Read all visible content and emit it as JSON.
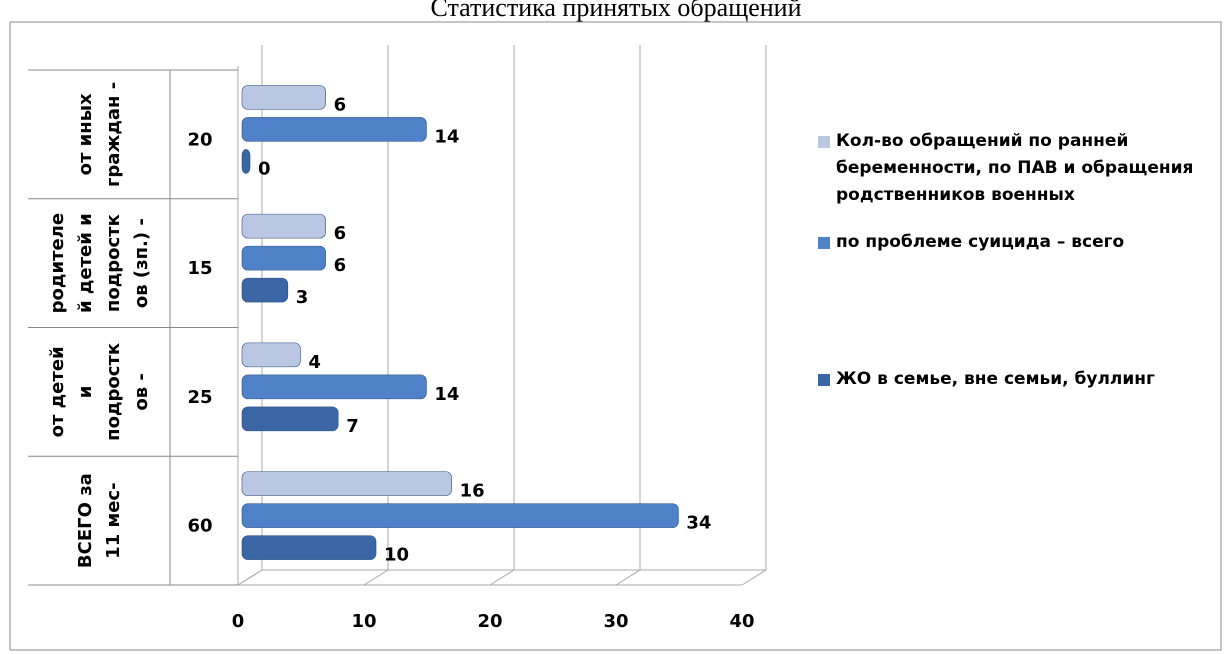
{
  "chart_data": {
    "type": "bar",
    "orientation": "horizontal",
    "title": "Статистика принятых обращений",
    "categories": [
      [
        "ВСЕГО за",
        "11 мес-"
      ],
      [
        "от детей",
        "и",
        "подростк",
        "ов -"
      ],
      [
        "родителе",
        "й детей и",
        "подростк",
        "ов (зп.) -"
      ],
      [
        "от иных",
        "граждан -"
      ]
    ],
    "category_totals": [
      60,
      25,
      15,
      20
    ],
    "series": [
      {
        "name": "Кол-во обращений по ранней беременности, по ПАВ и обращения родственников военных",
        "color": "#b9c7e2",
        "values": [
          16,
          4,
          6,
          6
        ]
      },
      {
        "name": "по проблеме суицида – всего",
        "color": "#4f81c8",
        "values": [
          34,
          14,
          6,
          14
        ]
      },
      {
        "name": "ЖО в семье, вне семьи, буллинг",
        "color": "#3b66a6",
        "values": [
          10,
          7,
          3,
          0
        ]
      }
    ],
    "xlim": [
      0,
      40
    ],
    "xticks": [
      0,
      10,
      20,
      30,
      40
    ],
    "grid": true,
    "legend": "right"
  }
}
